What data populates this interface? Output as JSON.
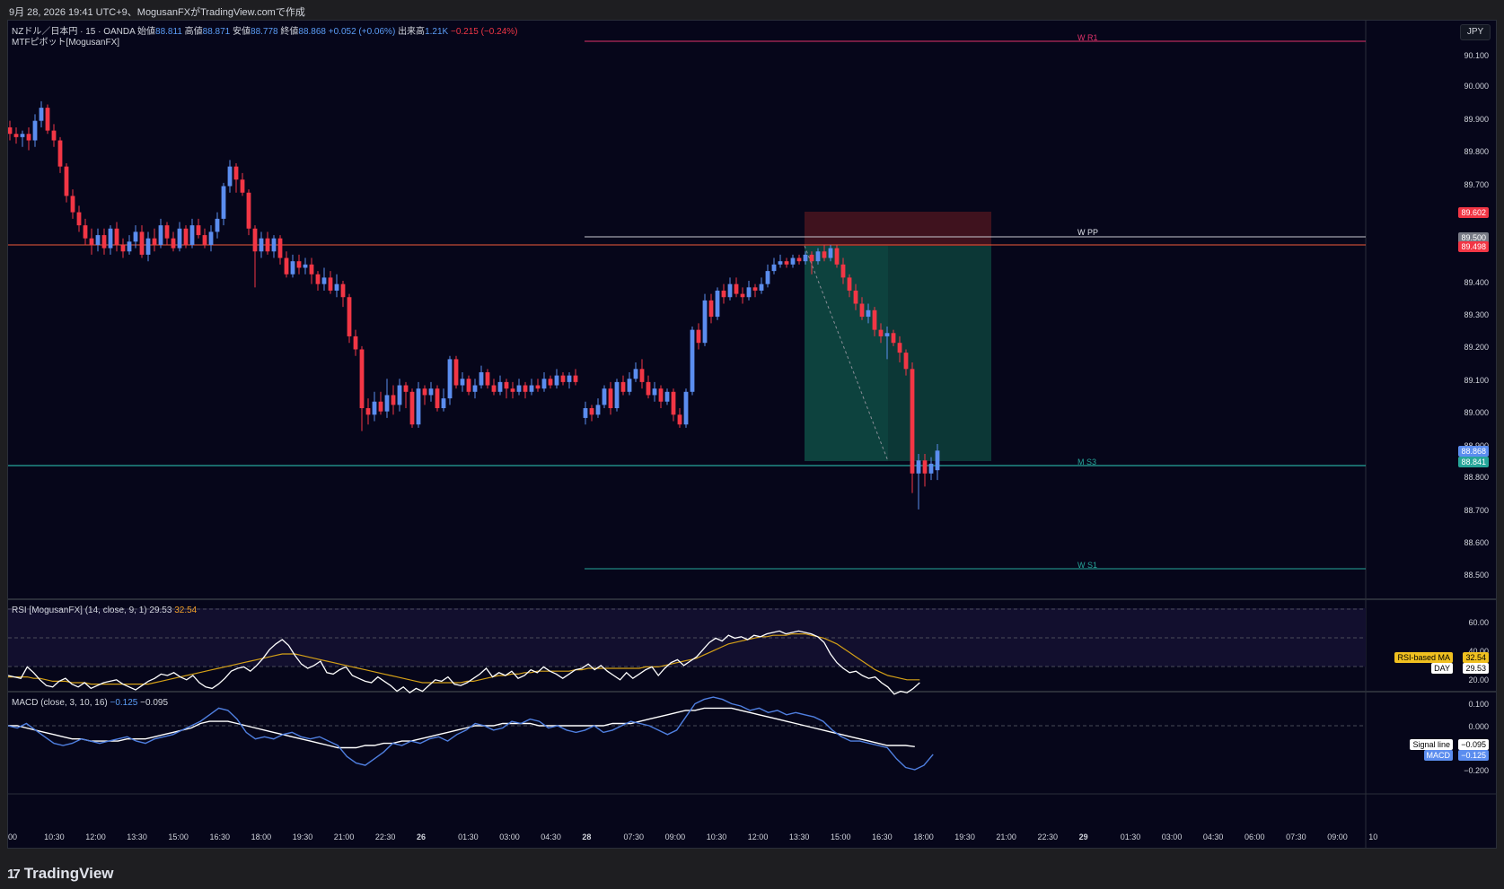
{
  "header": {
    "text": "9月 28, 2026 19:41 UTC+9、MogusanFXがTradingView.comで作成"
  },
  "legend": {
    "symbol": "NZドル／日本円 · 15 · OANDA",
    "open_label": "始値",
    "open": "88.811",
    "high_label": "高値",
    "high": "88.871",
    "low_label": "安値",
    "low": "88.778",
    "close_label": "終値",
    "close": "88.868",
    "change": "+0.052 (+0.06%)",
    "volume_label": "出来高",
    "volume": "1.21K",
    "volume_change": "−0.215 (−0.24%)",
    "indicator": "MTFピボット[MogusanFX]"
  },
  "currency_button": "JPY",
  "price_axis": [
    "90.100",
    "90.000",
    "89.900",
    "89.800",
    "89.700",
    "89.400",
    "89.300",
    "89.200",
    "89.100",
    "89.000",
    "88.900",
    "88.800",
    "88.700",
    "88.600",
    "88.500"
  ],
  "price_tags": {
    "stop": "89.602",
    "wpp": "89.500",
    "entry": "89.498",
    "last": "88.868",
    "ms3": "88.841"
  },
  "pivot_levels": {
    "wr1": "W R1",
    "wpp": "W PP",
    "ms3": "M S3",
    "ws1": "W S1"
  },
  "rsi": {
    "title": "RSI [MogusanFX] (14, close, 9, 1)",
    "value": "29.53",
    "ma": "32.54",
    "axis": [
      "60.00",
      "40.00",
      "20.00"
    ],
    "ma_label": "RSI-based MA",
    "ma_value": "32.54",
    "day_label": "DAY",
    "day_value": "29.53"
  },
  "macd": {
    "title": "MACD (close, 3, 10, 16)",
    "value1": "−0.125",
    "value2": "−0.095",
    "axis": [
      "0.100",
      "0.000",
      "−0.200"
    ],
    "signal_label": "Signal line",
    "signal_value": "−0.095",
    "macd_label": "MACD",
    "macd_value": "−0.125"
  },
  "time_axis": [
    "00",
    "10:30",
    "12:00",
    "13:30",
    "15:00",
    "16:30",
    "18:00",
    "19:30",
    "21:00",
    "22:30",
    "26",
    "01:30",
    "03:00",
    "04:30",
    "28",
    "07:30",
    "09:00",
    "10:30",
    "12:00",
    "13:30",
    "15:00",
    "16:30",
    "18:00",
    "19:30",
    "21:00",
    "22:30",
    "29",
    "01:30",
    "03:00",
    "04:30",
    "06:00",
    "07:30",
    "09:00",
    "10"
  ],
  "brand": "TradingView",
  "colors": {
    "up": "#5b8def",
    "down": "#f23645",
    "bg": "#06061a",
    "teal": "#26a69a",
    "stop": "#4a1520"
  }
}
